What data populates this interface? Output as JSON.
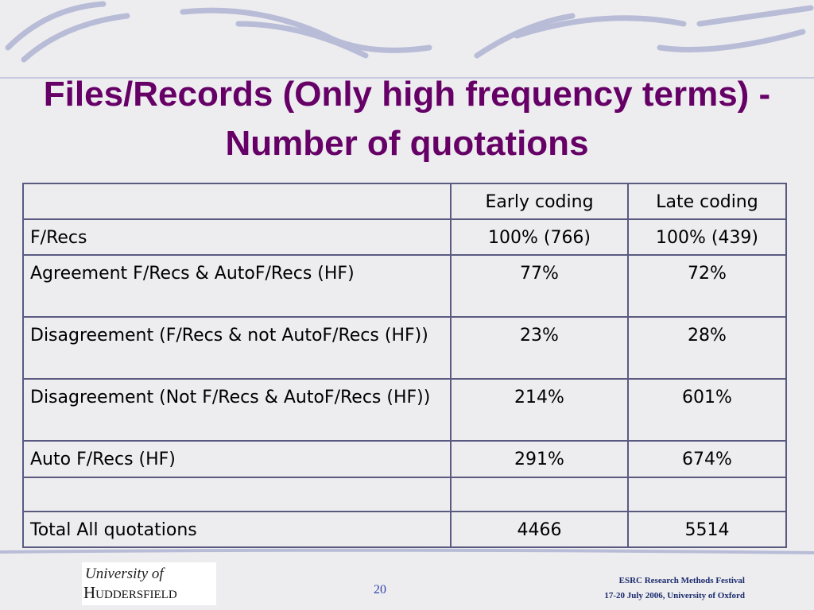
{
  "title": "Files/Records (Only high frequency terms) - Number of quotations",
  "table": {
    "header": [
      "Early coding",
      "Late coding"
    ],
    "rows": [
      [
        "F/Recs",
        "100% (766)",
        "100% (439)"
      ],
      [
        "Agreement F/Recs & AutoF/Recs (HF)",
        "77%",
        "72%"
      ],
      [
        "Disagreement (F/Recs & not AutoF/Recs (HF))",
        "23%",
        "28%"
      ],
      [
        "Disagreement (Not F/Recs & AutoF/Recs (HF))",
        "214%",
        "601%"
      ],
      [
        "Auto F/Recs (HF)",
        "291%",
        "674%"
      ],
      [
        "Total All quotations",
        "4466",
        "5514"
      ]
    ]
  },
  "footer": {
    "logo_line1": "University of",
    "logo_line2": "Huddersfield",
    "page_number": "20",
    "event": "ESRC Research Methods Festival",
    "event_date": "17-20 July 2006, University of Oxford"
  }
}
